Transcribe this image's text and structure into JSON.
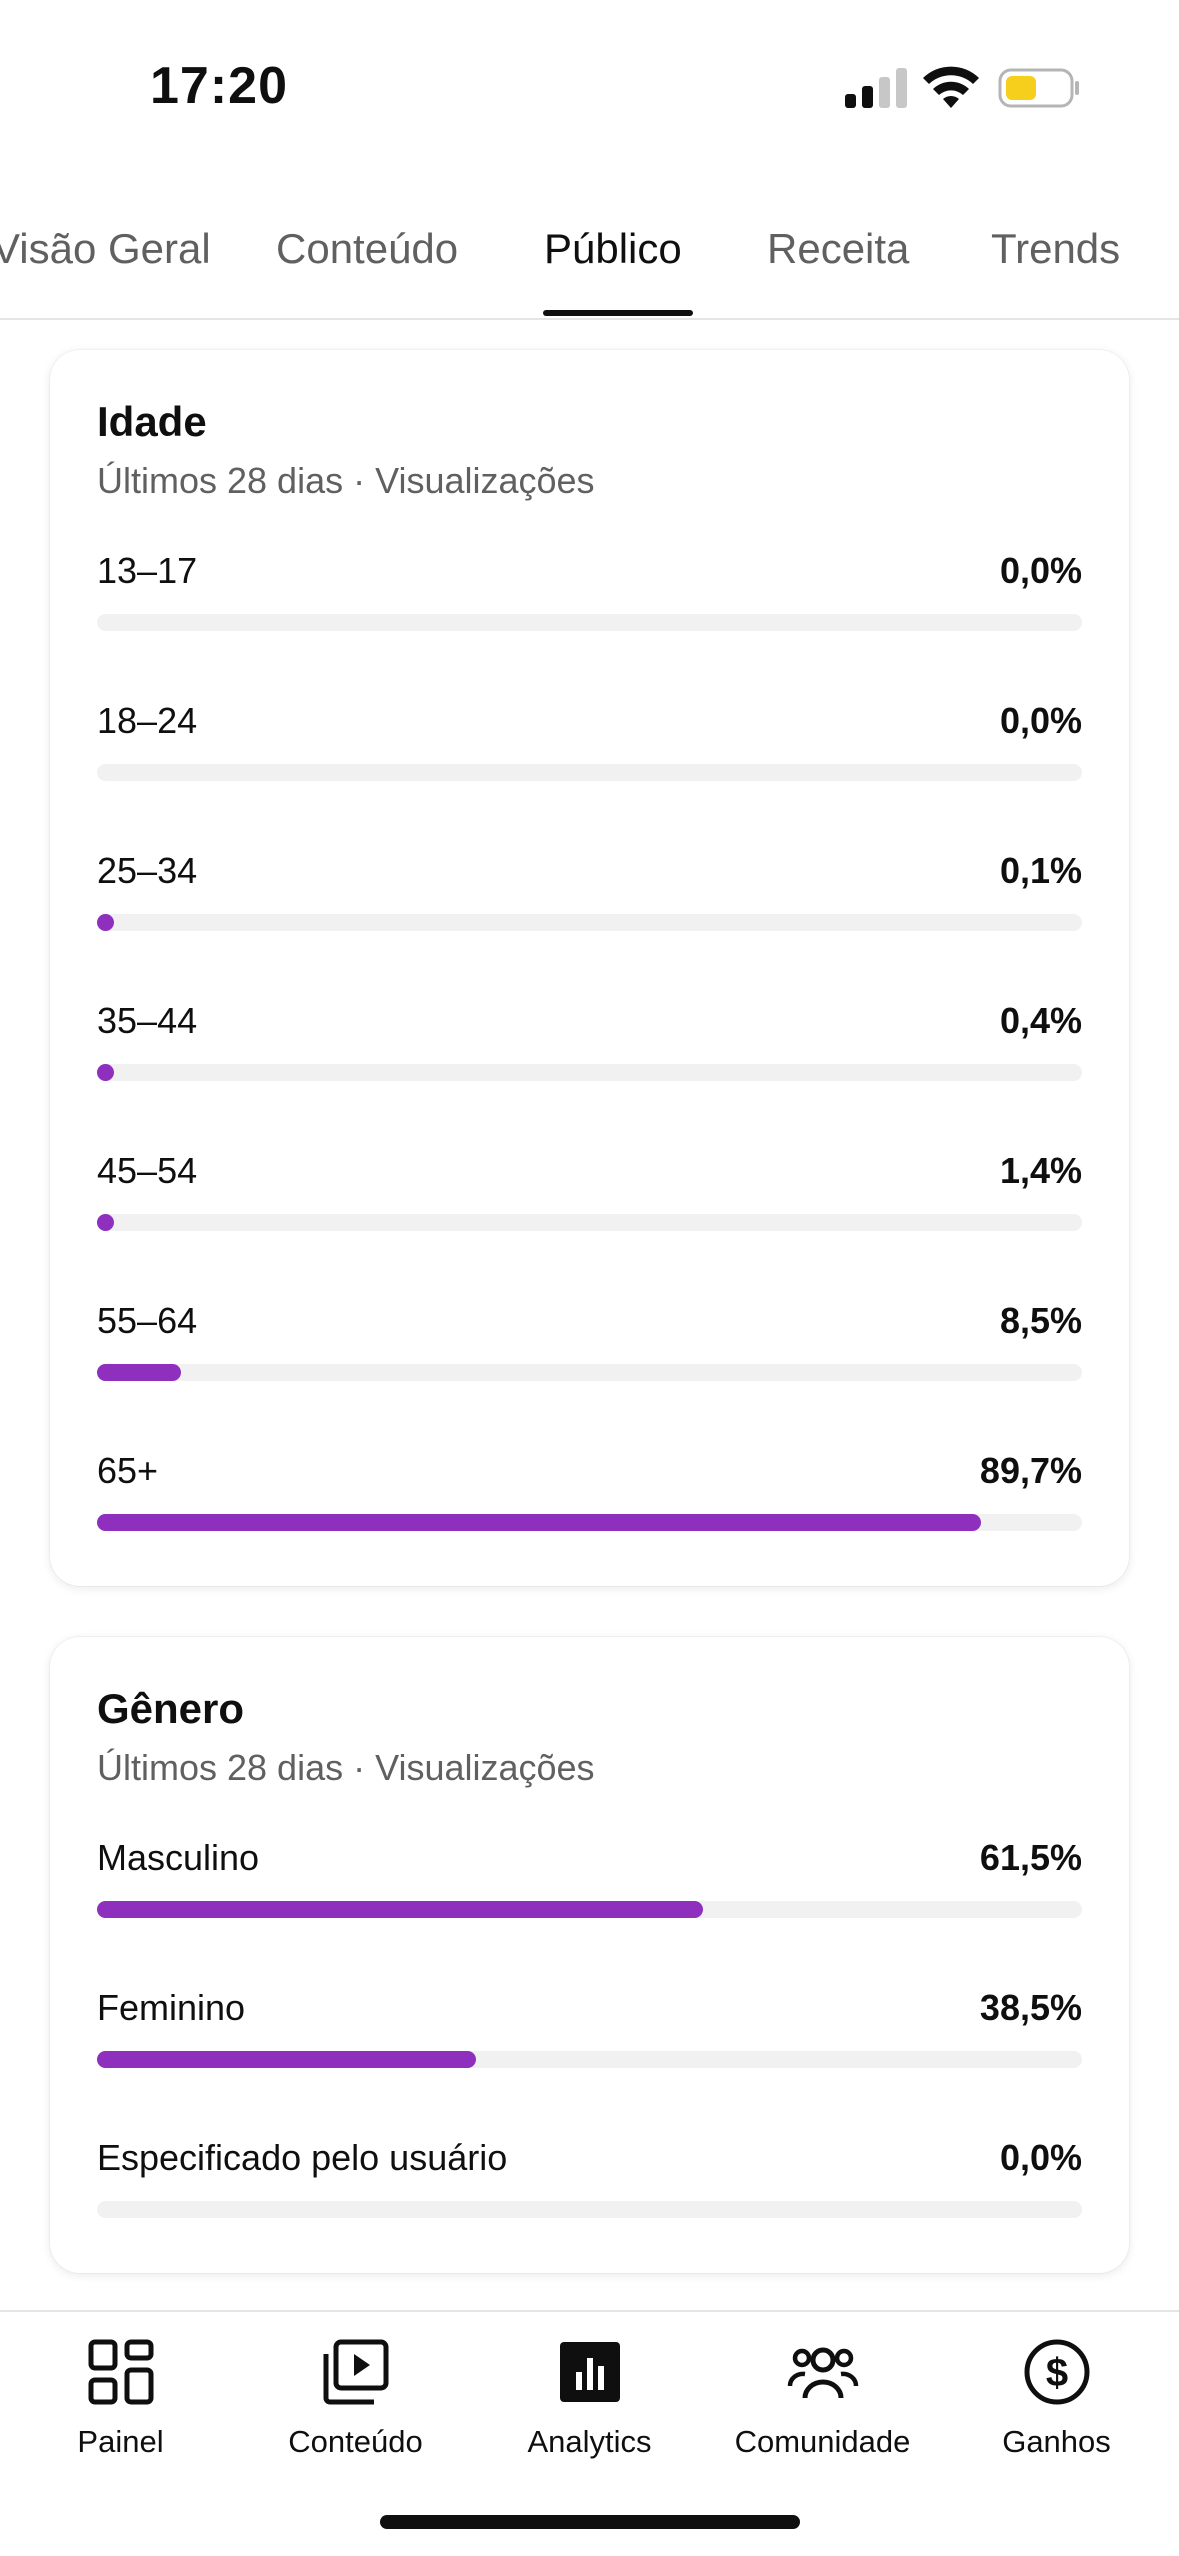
{
  "status_bar": {
    "time": "17:20",
    "icons": [
      "signal-icon",
      "wifi-icon",
      "battery-icon"
    ],
    "battery_color": "#f5cf1b"
  },
  "tabs": [
    {
      "label": "Visão Geral",
      "active": false
    },
    {
      "label": "Conteúdo",
      "active": false
    },
    {
      "label": "Público",
      "active": true
    },
    {
      "label": "Receita",
      "active": false
    },
    {
      "label": "Trends",
      "active": false
    }
  ],
  "colors": {
    "accent": "#8e2fbd",
    "track": "#f1f1f1",
    "text_primary": "#0f0f0f",
    "text_secondary": "#606060"
  },
  "age_card": {
    "title": "Idade",
    "subtitle": "Últimos 28 dias · Visualizações",
    "rows": [
      {
        "label": "13–17",
        "value": "0,0%",
        "percent": 0.0
      },
      {
        "label": "18–24",
        "value": "0,0%",
        "percent": 0.0
      },
      {
        "label": "25–34",
        "value": "0,1%",
        "percent": 0.1
      },
      {
        "label": "35–44",
        "value": "0,4%",
        "percent": 0.4
      },
      {
        "label": "45–54",
        "value": "1,4%",
        "percent": 1.4
      },
      {
        "label": "55–64",
        "value": "8,5%",
        "percent": 8.5
      },
      {
        "label": "65+",
        "value": "89,7%",
        "percent": 89.7
      }
    ]
  },
  "gender_card": {
    "title": "Gênero",
    "subtitle": "Últimos 28 dias · Visualizações",
    "rows": [
      {
        "label": "Masculino",
        "value": "61,5%",
        "percent": 61.5
      },
      {
        "label": "Feminino",
        "value": "38,5%",
        "percent": 38.5
      },
      {
        "label": "Especificado pelo usuário",
        "value": "0,0%",
        "percent": 0.0
      }
    ]
  },
  "bottom_nav": [
    {
      "label": "Painel",
      "icon": "dashboard-icon"
    },
    {
      "label": "Conteúdo",
      "icon": "content-icon"
    },
    {
      "label": "Analytics",
      "icon": "analytics-icon",
      "active": true
    },
    {
      "label": "Comunidade",
      "icon": "community-icon"
    },
    {
      "label": "Ganhos",
      "icon": "earnings-icon"
    }
  ]
}
